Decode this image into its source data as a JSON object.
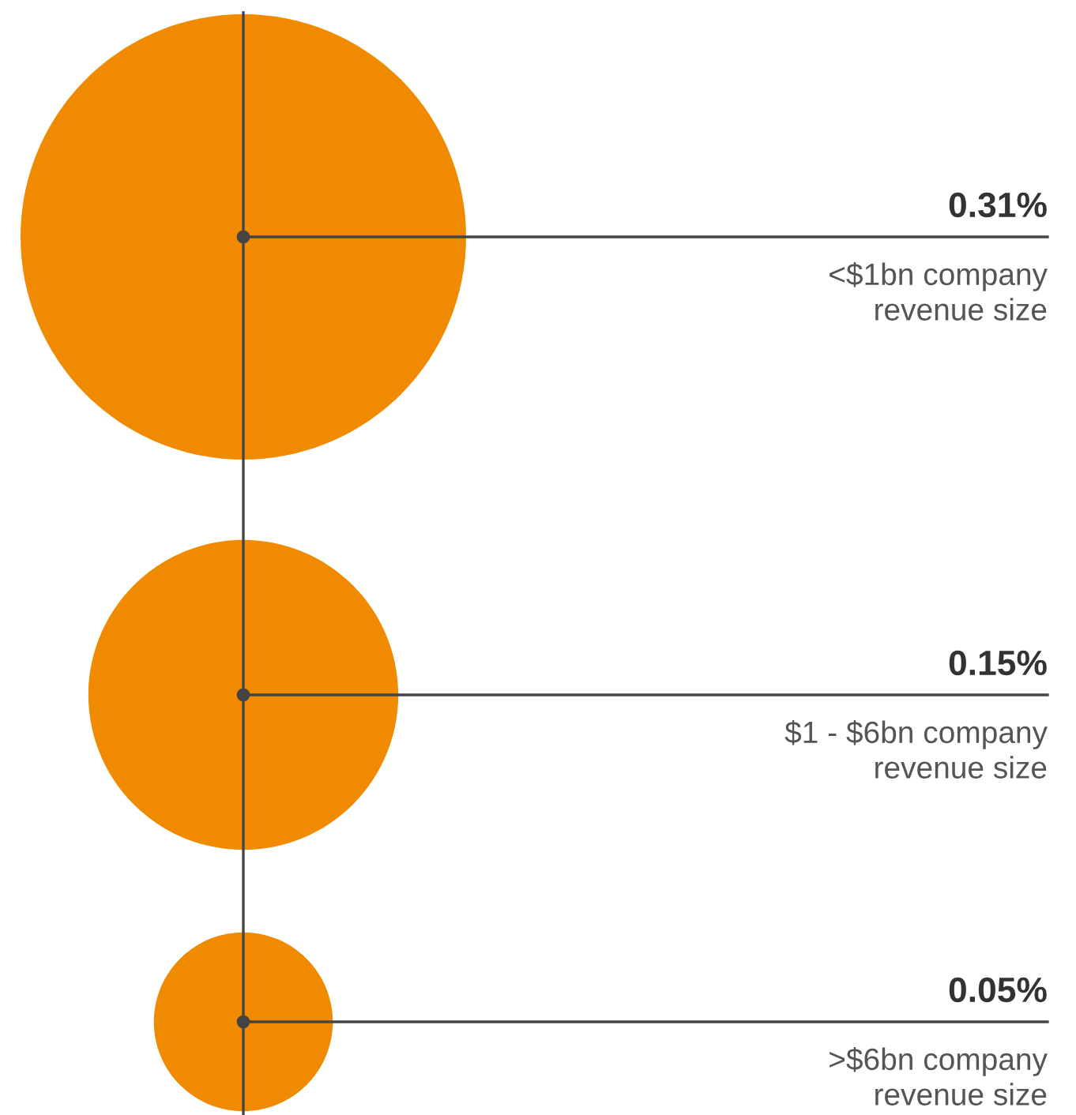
{
  "chart_data": {
    "type": "other",
    "categories": [
      "<$1bn company\nrevenue size",
      "$1 - $6bn company\nrevenue size",
      ">$6bn company\nrevenue size"
    ],
    "values": [
      0.31,
      0.15,
      0.05
    ],
    "value_labels": [
      "0.31%",
      "0.15%",
      "0.05%"
    ],
    "color": "#f08a00"
  }
}
